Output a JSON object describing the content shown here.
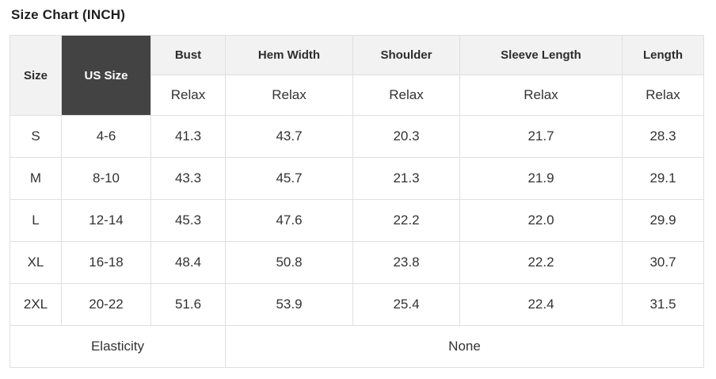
{
  "title": "Size Chart (INCH)",
  "table": {
    "corner_header": "Size",
    "us_size_header": "US Size",
    "measure_headers": [
      "Bust",
      "Hem Width",
      "Shoulder",
      "Sleeve Length",
      "Length"
    ],
    "fit_row": [
      "Relax",
      "Relax",
      "Relax",
      "Relax",
      "Relax"
    ],
    "rows": [
      {
        "size": "S",
        "us_size": "4-6",
        "values": [
          "41.3",
          "43.7",
          "20.3",
          "21.7",
          "28.3"
        ]
      },
      {
        "size": "M",
        "us_size": "8-10",
        "values": [
          "43.3",
          "45.7",
          "21.3",
          "21.9",
          "29.1"
        ]
      },
      {
        "size": "L",
        "us_size": "12-14",
        "values": [
          "45.3",
          "47.6",
          "22.2",
          "22.0",
          "29.9"
        ]
      },
      {
        "size": "XL",
        "us_size": "16-18",
        "values": [
          "48.4",
          "50.8",
          "23.8",
          "22.2",
          "30.7"
        ]
      },
      {
        "size": "2XL",
        "us_size": "20-22",
        "values": [
          "51.6",
          "53.9",
          "25.4",
          "22.4",
          "31.5"
        ]
      }
    ],
    "footer": {
      "label": "Elasticity",
      "value": "None"
    }
  },
  "colors": {
    "dark_header_bg": "#434343",
    "dark_header_text": "#ffffff",
    "light_header_bg": "#f2f2f2",
    "border": "#e0e0e0",
    "text": "#333333"
  },
  "chart_data": {
    "type": "table",
    "title": "Size Chart (INCH)",
    "unit": "INCH",
    "columns": [
      "Size",
      "US Size",
      "Bust",
      "Hem Width",
      "Shoulder",
      "Sleeve Length",
      "Length"
    ],
    "fit_type_row": [
      "",
      "",
      "Relax",
      "Relax",
      "Relax",
      "Relax",
      "Relax"
    ],
    "rows": [
      [
        "S",
        "4-6",
        41.3,
        43.7,
        20.3,
        21.7,
        28.3
      ],
      [
        "M",
        "8-10",
        43.3,
        45.7,
        21.3,
        21.9,
        29.1
      ],
      [
        "L",
        "12-14",
        45.3,
        47.6,
        22.2,
        22.0,
        29.9
      ],
      [
        "XL",
        "16-18",
        48.4,
        50.8,
        23.8,
        22.2,
        30.7
      ],
      [
        "2XL",
        "20-22",
        51.6,
        53.9,
        25.4,
        22.4,
        31.5
      ]
    ],
    "footer": {
      "Elasticity": "None"
    }
  }
}
